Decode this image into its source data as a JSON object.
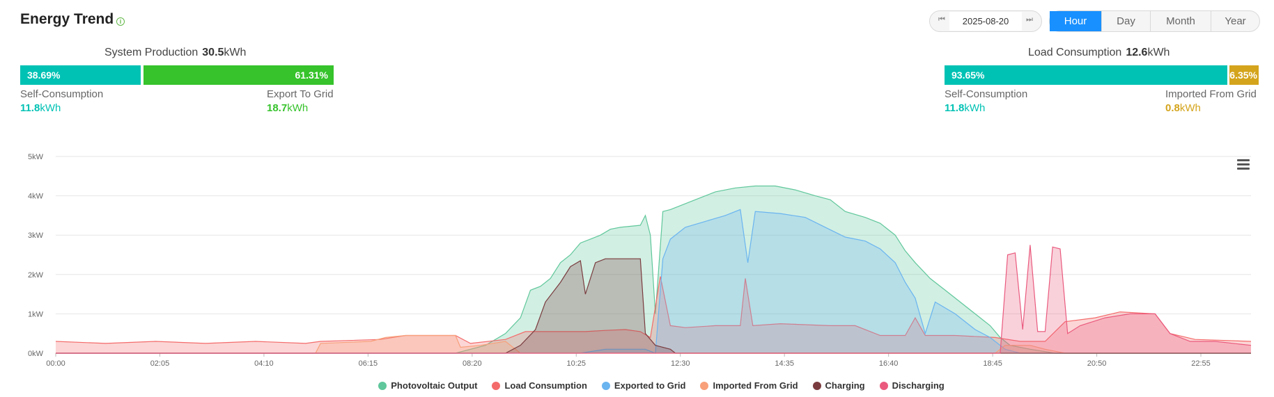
{
  "header": {
    "title": "Energy Trend",
    "info_icon": "info-icon"
  },
  "date_picker": {
    "prev_icon": "first-page-icon",
    "next_icon": "last-page-icon",
    "date": "2025-08-20"
  },
  "period_tabs": [
    {
      "label": "Hour",
      "active": true
    },
    {
      "label": "Day",
      "active": false
    },
    {
      "label": "Month",
      "active": false
    },
    {
      "label": "Year",
      "active": false
    }
  ],
  "production": {
    "title": "System Production",
    "value": "30.5",
    "unit": "kWh",
    "self_pct": 38.69,
    "export_pct": 61.31,
    "self_pct_label": "38.69%",
    "export_pct_label": "61.31%",
    "self_label": "Self-Consumption",
    "self_value": "11.8",
    "self_unit": "kWh",
    "export_label": "Export To Grid",
    "export_value": "18.7",
    "export_unit": "kWh"
  },
  "consumption": {
    "title": "Load Consumption",
    "value": "12.6",
    "unit": "kWh",
    "self_pct": 93.65,
    "import_pct": 6.35,
    "self_pct_label": "93.65%",
    "import_pct_label": "6.35%",
    "self_label": "Self-Consumption",
    "self_value": "11.8",
    "self_unit": "kWh",
    "import_label": "Imported From Grid",
    "import_value": "0.8",
    "import_unit": "kWh"
  },
  "colors": {
    "teal": "#00c2b4",
    "green": "#36c32b",
    "gold": "#d4a41c",
    "blue": "#1890ff"
  },
  "chart_data": {
    "type": "area",
    "x_ticks": [
      "00:00",
      "02:05",
      "04:10",
      "06:15",
      "08:20",
      "10:25",
      "12:30",
      "14:35",
      "16:40",
      "18:45",
      "20:50",
      "22:55"
    ],
    "y_ticks": [
      "0kW",
      "1kW",
      "2kW",
      "3kW",
      "4kW",
      "5kW"
    ],
    "ylim": [
      0,
      5
    ],
    "xlim_hours": [
      0,
      23.92
    ],
    "grid": true,
    "legend_position": "bottom-center",
    "series": [
      {
        "name": "Photovoltaic Output",
        "color": "#5fc79b",
        "points": [
          [
            0,
            0
          ],
          [
            8.0,
            0
          ],
          [
            8.6,
            0.2
          ],
          [
            9.0,
            0.5
          ],
          [
            9.3,
            0.9
          ],
          [
            9.5,
            1.6
          ],
          [
            9.7,
            1.7
          ],
          [
            9.9,
            1.9
          ],
          [
            10.1,
            2.3
          ],
          [
            10.3,
            2.5
          ],
          [
            10.5,
            2.8
          ],
          [
            10.7,
            2.9
          ],
          [
            10.9,
            3.0
          ],
          [
            11.1,
            3.15
          ],
          [
            11.3,
            3.2
          ],
          [
            11.7,
            3.25
          ],
          [
            11.8,
            3.5
          ],
          [
            11.9,
            3.0
          ],
          [
            12.0,
            1.0
          ],
          [
            12.15,
            3.6
          ],
          [
            12.3,
            3.65
          ],
          [
            12.6,
            3.8
          ],
          [
            12.9,
            3.95
          ],
          [
            13.2,
            4.1
          ],
          [
            13.6,
            4.2
          ],
          [
            14.0,
            4.25
          ],
          [
            14.4,
            4.25
          ],
          [
            14.8,
            4.15
          ],
          [
            15.2,
            4.0
          ],
          [
            15.5,
            3.9
          ],
          [
            15.8,
            3.6
          ],
          [
            16.2,
            3.45
          ],
          [
            16.5,
            3.3
          ],
          [
            16.8,
            3.0
          ],
          [
            17.0,
            2.6
          ],
          [
            17.2,
            2.3
          ],
          [
            17.5,
            1.9
          ],
          [
            17.8,
            1.6
          ],
          [
            18.1,
            1.3
          ],
          [
            18.4,
            1.0
          ],
          [
            18.7,
            0.7
          ],
          [
            18.9,
            0.4
          ],
          [
            19.1,
            0.2
          ],
          [
            19.5,
            0.1
          ],
          [
            20.0,
            0.0
          ],
          [
            23.92,
            0
          ]
        ]
      },
      {
        "name": "Load Consumption",
        "color": "#f46b6b",
        "points": [
          [
            0,
            0.3
          ],
          [
            1.0,
            0.25
          ],
          [
            2.0,
            0.3
          ],
          [
            3.0,
            0.25
          ],
          [
            4.0,
            0.3
          ],
          [
            5.0,
            0.25
          ],
          [
            5.3,
            0.3
          ],
          [
            6.5,
            0.35
          ],
          [
            7.0,
            0.45
          ],
          [
            8.0,
            0.45
          ],
          [
            8.3,
            0.25
          ],
          [
            9.0,
            0.35
          ],
          [
            9.4,
            0.55
          ],
          [
            10.0,
            0.55
          ],
          [
            10.6,
            0.55
          ],
          [
            11.0,
            0.58
          ],
          [
            11.4,
            0.6
          ],
          [
            11.7,
            0.55
          ],
          [
            11.9,
            0.4
          ],
          [
            12.1,
            1.95
          ],
          [
            12.3,
            0.7
          ],
          [
            12.6,
            0.65
          ],
          [
            13.2,
            0.7
          ],
          [
            13.7,
            0.7
          ],
          [
            13.8,
            1.9
          ],
          [
            13.95,
            0.7
          ],
          [
            14.5,
            0.75
          ],
          [
            15.5,
            0.7
          ],
          [
            16.0,
            0.7
          ],
          [
            16.5,
            0.45
          ],
          [
            17.0,
            0.45
          ],
          [
            17.2,
            0.9
          ],
          [
            17.4,
            0.45
          ],
          [
            18.0,
            0.45
          ],
          [
            18.8,
            0.4
          ],
          [
            19.3,
            0.3
          ],
          [
            19.8,
            0.3
          ],
          [
            20.2,
            0.8
          ],
          [
            20.8,
            0.9
          ],
          [
            21.3,
            1.05
          ],
          [
            22.0,
            1.0
          ],
          [
            22.3,
            0.5
          ],
          [
            22.8,
            0.35
          ],
          [
            23.92,
            0.3
          ]
        ]
      },
      {
        "name": "Exported to Grid",
        "color": "#6ab4f0",
        "points": [
          [
            0,
            0
          ],
          [
            10.5,
            0
          ],
          [
            11.0,
            0.1
          ],
          [
            11.8,
            0.1
          ],
          [
            12.0,
            0.0
          ],
          [
            12.15,
            2.4
          ],
          [
            12.3,
            2.9
          ],
          [
            12.6,
            3.2
          ],
          [
            13.0,
            3.35
          ],
          [
            13.4,
            3.5
          ],
          [
            13.7,
            3.65
          ],
          [
            13.85,
            2.3
          ],
          [
            14.0,
            3.6
          ],
          [
            14.5,
            3.55
          ],
          [
            15.0,
            3.45
          ],
          [
            15.4,
            3.2
          ],
          [
            15.8,
            2.95
          ],
          [
            16.2,
            2.85
          ],
          [
            16.5,
            2.65
          ],
          [
            16.8,
            2.3
          ],
          [
            17.0,
            1.8
          ],
          [
            17.2,
            1.4
          ],
          [
            17.4,
            0.5
          ],
          [
            17.6,
            1.3
          ],
          [
            18.0,
            1.0
          ],
          [
            18.4,
            0.6
          ],
          [
            18.7,
            0.4
          ],
          [
            19.0,
            0.1
          ],
          [
            19.3,
            0.0
          ],
          [
            23.92,
            0
          ]
        ]
      },
      {
        "name": "Imported From Grid",
        "color": "#f8a07a",
        "points": [
          [
            0,
            0
          ],
          [
            5.2,
            0
          ],
          [
            5.3,
            0.25
          ],
          [
            6.3,
            0.3
          ],
          [
            6.6,
            0.4
          ],
          [
            7.0,
            0.45
          ],
          [
            8.0,
            0.45
          ],
          [
            8.1,
            0.15
          ],
          [
            8.5,
            0.2
          ],
          [
            9.0,
            0.3
          ],
          [
            9.3,
            0.0
          ],
          [
            18.8,
            0.0
          ],
          [
            19.0,
            0.2
          ],
          [
            19.5,
            0.2
          ],
          [
            19.8,
            0.1
          ],
          [
            20.2,
            0.0
          ],
          [
            23.92,
            0
          ]
        ]
      },
      {
        "name": "Charging",
        "color": "#7a3c3f",
        "points": [
          [
            0,
            0
          ],
          [
            9.0,
            0
          ],
          [
            9.3,
            0.2
          ],
          [
            9.6,
            0.6
          ],
          [
            9.8,
            1.3
          ],
          [
            10.1,
            1.8
          ],
          [
            10.3,
            2.2
          ],
          [
            10.5,
            2.35
          ],
          [
            10.6,
            1.5
          ],
          [
            10.8,
            2.3
          ],
          [
            11.0,
            2.4
          ],
          [
            11.7,
            2.4
          ],
          [
            11.8,
            0.5
          ],
          [
            12.0,
            0.2
          ],
          [
            12.3,
            0.1
          ],
          [
            12.4,
            0.0
          ],
          [
            23.92,
            0
          ]
        ]
      },
      {
        "name": "Discharging",
        "color": "#ea5a7e",
        "points": [
          [
            0,
            0
          ],
          [
            18.9,
            0
          ],
          [
            19.05,
            2.5
          ],
          [
            19.2,
            2.55
          ],
          [
            19.35,
            0.6
          ],
          [
            19.5,
            2.75
          ],
          [
            19.65,
            0.55
          ],
          [
            19.8,
            0.55
          ],
          [
            19.95,
            2.7
          ],
          [
            20.1,
            2.65
          ],
          [
            20.25,
            0.5
          ],
          [
            20.5,
            0.7
          ],
          [
            21.0,
            0.9
          ],
          [
            21.5,
            1.0
          ],
          [
            22.0,
            1.0
          ],
          [
            22.3,
            0.5
          ],
          [
            22.7,
            0.3
          ],
          [
            23.2,
            0.3
          ],
          [
            23.92,
            0.2
          ]
        ]
      }
    ]
  }
}
